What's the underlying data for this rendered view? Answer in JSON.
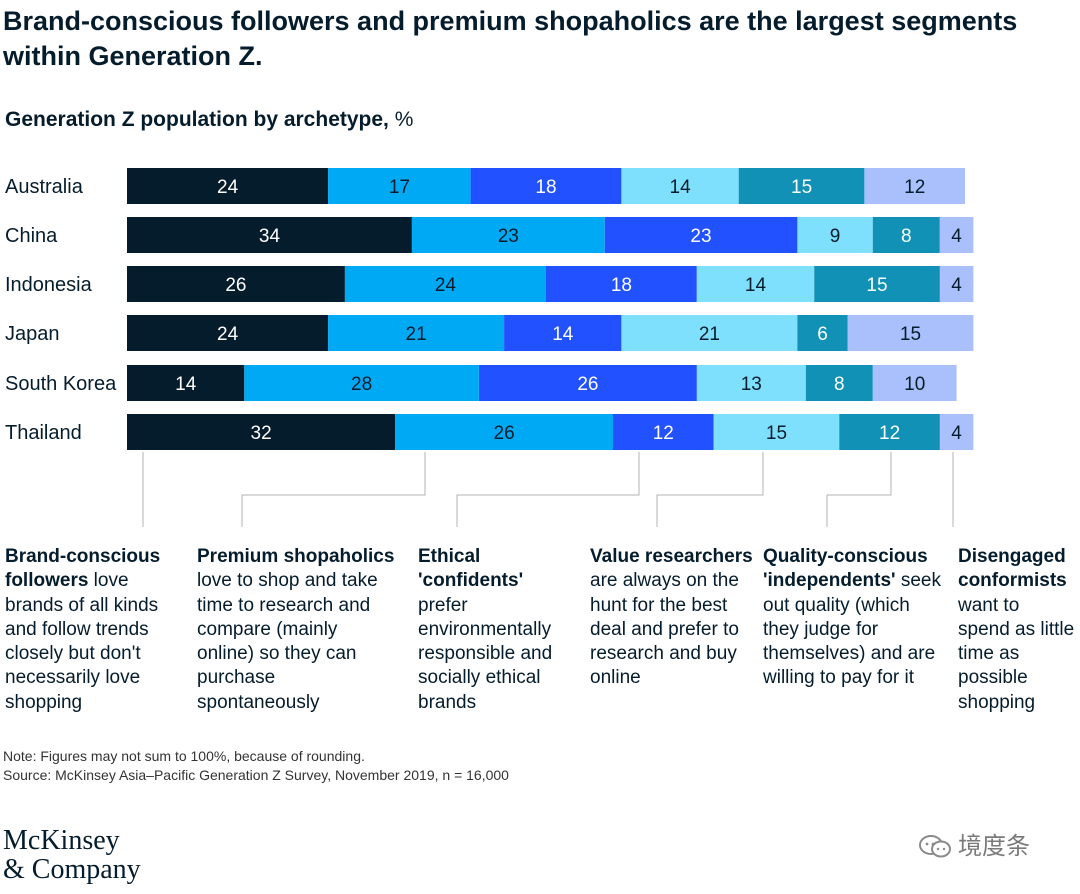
{
  "title": "Brand-conscious followers and premium shopaholics are the largest segments within Generation Z.",
  "subtitle": {
    "bold": "Generation Z population by archetype,",
    "unit": "%"
  },
  "chart_data": {
    "type": "bar",
    "orientation": "horizontal",
    "stacked": true,
    "categories": [
      "Australia",
      "China",
      "Indonesia",
      "Japan",
      "South Korea",
      "Thailand"
    ],
    "series": [
      {
        "name": "Brand-conscious followers",
        "color": "#051c2c",
        "label_color": "#ffffff",
        "values": [
          24,
          34,
          26,
          24,
          14,
          32
        ]
      },
      {
        "name": "Premium shopaholics",
        "color": "#00a9f4",
        "label_color": "#051c2c",
        "values": [
          17,
          23,
          24,
          21,
          28,
          26
        ]
      },
      {
        "name": "Ethical 'confidents'",
        "color": "#2251ff",
        "label_color": "#ffffff",
        "values": [
          18,
          23,
          18,
          14,
          26,
          12
        ]
      },
      {
        "name": "Value researchers",
        "color": "#7ee0fc",
        "label_color": "#051c2c",
        "values": [
          14,
          9,
          14,
          21,
          13,
          15
        ]
      },
      {
        "name": "Quality-conscious 'independents'",
        "color": "#1091b5",
        "label_color": "#ffffff",
        "values": [
          15,
          8,
          15,
          6,
          8,
          12
        ]
      },
      {
        "name": "Disengaged conformists",
        "color": "#aac0fc",
        "label_color": "#051c2c",
        "values": [
          12,
          4,
          4,
          15,
          10,
          4
        ]
      }
    ],
    "data_labels": true,
    "legend": "annotations below chart"
  },
  "descriptions": [
    {
      "bold": "Brand-conscious followers",
      "text": " love brands of all kinds and follow trends closely but don't necessarily love shopping"
    },
    {
      "bold": "Premium shopaholics",
      "text": " love to shop and take time to research and compare (mainly online) so they can purchase spontaneously"
    },
    {
      "bold": "Ethical 'confidents'",
      "text": " prefer environmentally responsible and socially ethical brands"
    },
    {
      "bold": "Value researchers",
      "text": " are always on the hunt for the best deal and prefer to research and buy online"
    },
    {
      "bold": "Quality-conscious 'independents'",
      "text": " seek out quality (which they judge for themselves) and are willing to pay for it"
    },
    {
      "bold": "Disengaged conformists",
      "text": " want to spend as little time as possible shopping"
    }
  ],
  "note": "Note: Figures may not sum to 100%, because of rounding.",
  "source": "Source: McKinsey Asia–Pacific Generation Z Survey, November 2019, n = 16,000",
  "logo": {
    "line1": "McKinsey",
    "line2": "& Company"
  },
  "watermark": {
    "icon": "chat-bubbles-icon",
    "text": "境度条"
  }
}
